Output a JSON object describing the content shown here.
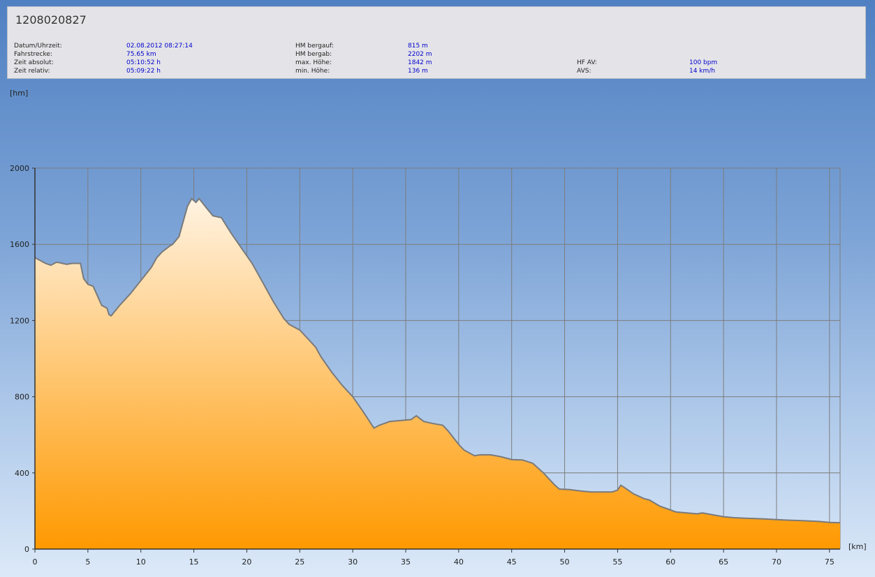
{
  "header": {
    "title": "1208020827",
    "stats": [
      {
        "label": "Datum/Uhrzeit:",
        "value": "02.08.2012 08:27:14"
      },
      {
        "label": "Fahrstrecke:",
        "value": "75.65 km"
      },
      {
        "label": "Zeit absolut:",
        "value": "05:10:52 h"
      },
      {
        "label": "Zeit relativ:",
        "value": "05:09:22 h"
      },
      {
        "label": "HM bergauf:",
        "value": "815 m"
      },
      {
        "label": "HM bergab:",
        "value": "2202 m"
      },
      {
        "label": "max. Höhe:",
        "value": "1842 m"
      },
      {
        "label": "min. Höhe:",
        "value": "136 m"
      },
      {
        "label": "HF AV:",
        "value": "100 bpm"
      },
      {
        "label": "AVS:",
        "value": "14 km/h"
      }
    ]
  },
  "colors": {
    "fill_top": "#fff3e2",
    "fill_bottom": "#ff9900",
    "line": "#7a7a7a",
    "grid": "#7d7d7d",
    "stats_value": "#0000cc"
  },
  "chart_data": {
    "type": "area",
    "xlabel": "[km]",
    "ylabel": "[hm]",
    "xlim": [
      0,
      76
    ],
    "ylim": [
      0,
      2000
    ],
    "x_ticks": [
      0,
      5,
      10,
      15,
      20,
      25,
      30,
      35,
      40,
      45,
      50,
      55,
      60,
      65,
      70,
      75
    ],
    "y_ticks": [
      0,
      400,
      800,
      1200,
      1600,
      2000
    ],
    "grid": true,
    "series": [
      {
        "x": [
          0,
          1,
          1.5,
          2,
          2.2,
          3,
          3.5,
          4.3,
          4.6,
          5,
          5.5,
          6.3,
          6.8,
          7,
          7.2,
          8,
          9,
          10,
          11,
          11.5,
          12,
          12.7,
          13,
          13.6,
          14,
          14.4,
          14.8,
          15.2,
          15.5,
          16.2,
          16.8,
          17.6,
          18.5,
          19.5,
          20.5,
          21.5,
          22.5,
          23.5,
          24,
          25,
          25.5,
          26.5,
          27,
          28,
          29,
          30,
          31,
          32,
          32.5,
          33.5,
          34.5,
          35.5,
          36,
          36.7,
          37.5,
          38.5,
          39,
          40,
          40.5,
          41.5,
          42,
          43,
          44,
          45,
          46,
          47,
          48,
          49,
          49.5,
          50.5,
          51.5,
          52.5,
          53.5,
          54.5,
          55,
          55.3,
          55.6,
          56.5,
          57.5,
          58,
          59,
          60,
          60.5,
          61.5,
          62.5,
          63,
          64,
          65,
          66,
          67,
          68,
          69,
          70,
          71,
          72,
          73,
          74,
          75,
          76
        ],
        "y": [
          1530,
          1500,
          1490,
          1505,
          1505,
          1495,
          1500,
          1500,
          1420,
          1390,
          1380,
          1280,
          1265,
          1230,
          1225,
          1280,
          1340,
          1410,
          1480,
          1530,
          1560,
          1590,
          1600,
          1640,
          1720,
          1800,
          1840,
          1820,
          1840,
          1790,
          1750,
          1740,
          1660,
          1580,
          1500,
          1400,
          1300,
          1210,
          1180,
          1150,
          1120,
          1060,
          1010,
          930,
          860,
          800,
          720,
          635,
          650,
          670,
          675,
          680,
          700,
          670,
          660,
          650,
          620,
          550,
          520,
          490,
          495,
          495,
          485,
          470,
          468,
          450,
          400,
          340,
          315,
          312,
          305,
          300,
          300,
          300,
          310,
          335,
          325,
          290,
          265,
          258,
          225,
          205,
          195,
          190,
          185,
          190,
          180,
          170,
          165,
          162,
          160,
          158,
          155,
          152,
          150,
          148,
          145,
          140,
          138
        ]
      }
    ]
  }
}
